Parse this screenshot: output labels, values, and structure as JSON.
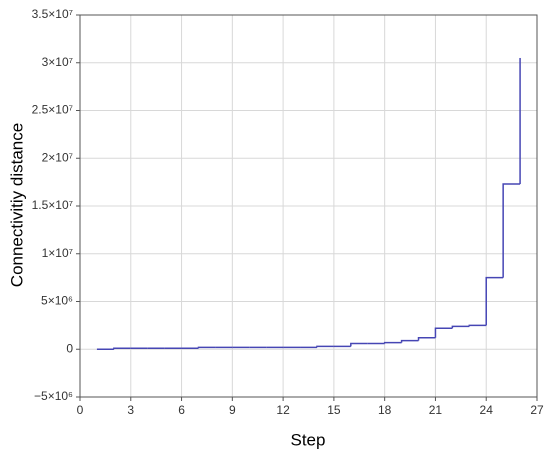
{
  "chart_data": {
    "type": "line",
    "step": "post",
    "xlabel": "Step",
    "ylabel": "Connectivitiy distance",
    "x": [
      1,
      2,
      3,
      4,
      5,
      6,
      7,
      8,
      9,
      10,
      11,
      12,
      13,
      14,
      15,
      16,
      17,
      18,
      19,
      20,
      21,
      22,
      23,
      24,
      25,
      26
    ],
    "series": [
      {
        "color": "#4646b4",
        "values": [
          0,
          100000,
          100000,
          100000,
          100000,
          100000,
          200000,
          200000,
          200000,
          200000,
          200000,
          200000,
          200000,
          300000,
          300000,
          600000,
          600000,
          700000,
          900000,
          1200000,
          2200000,
          2400000,
          2500000,
          7500000,
          17300000,
          30500000
        ]
      }
    ],
    "xlim": [
      0,
      27
    ],
    "xticks": [
      0,
      3,
      6,
      9,
      12,
      15,
      18,
      21,
      24,
      27
    ],
    "ylim": [
      -5000000,
      35000000
    ],
    "yticks": [
      {
        "value": -5000000,
        "label": "−5×10⁶"
      },
      0,
      {
        "value": 5000000,
        "label": "5×10⁶"
      },
      {
        "value": 10000000,
        "label": "1×10⁷"
      },
      {
        "value": 15000000,
        "label": "1.5×10⁷"
      },
      {
        "value": 20000000,
        "label": "2×10⁷"
      },
      {
        "value": 25000000,
        "label": "2.5×10⁷"
      },
      {
        "value": 30000000,
        "label": "3×10⁷"
      },
      {
        "value": 35000000,
        "label": "3.5×10⁷"
      }
    ],
    "grid": true
  }
}
